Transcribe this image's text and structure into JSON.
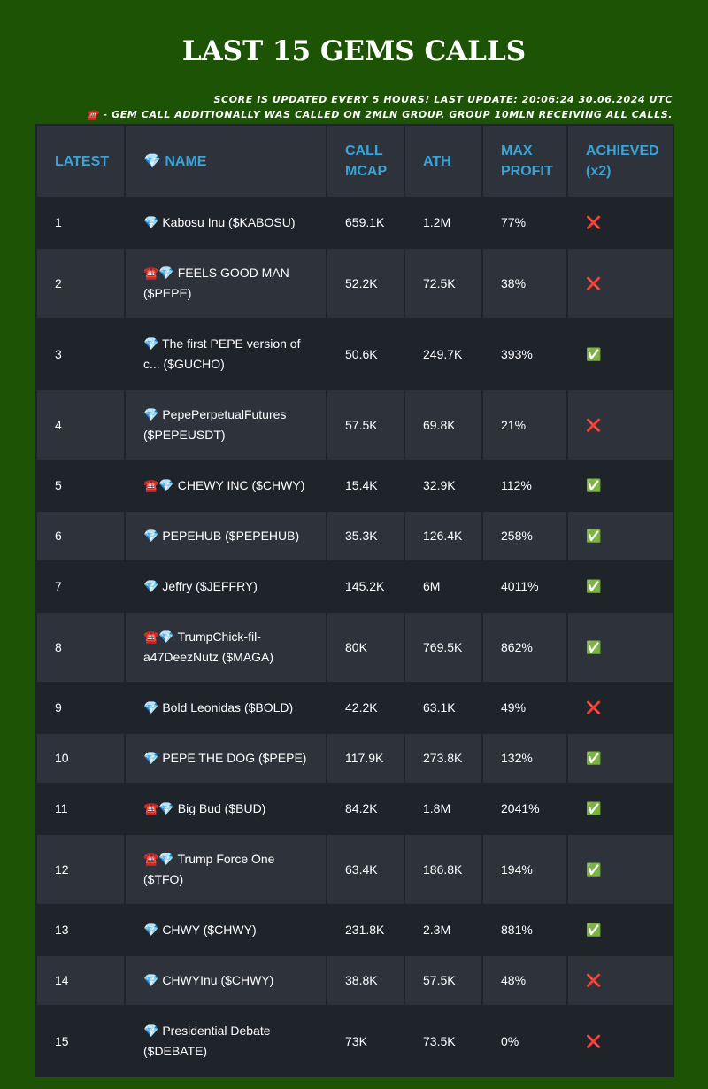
{
  "header": {
    "title": "LAST 15 GEMS CALLS",
    "subtitle": [
      "SCORE IS UPDATED EVERY 5 HOURS! LAST UPDATE: 20:06:24 30.06.2024 UTC",
      "☎️ - GEM CALL ADDITIONALLY WAS CALLED ON 2MLN GROUP. GROUP 10MLN RECEIVING ALL CALLS."
    ]
  },
  "table": {
    "columns": [
      "LATEST",
      "💎 NAME",
      "CALL MCAP",
      "ATH",
      "MAX PROFIT",
      "ACHIEVED (x2)"
    ],
    "rows": [
      [
        "1",
        "💎 Kabosu Inu ($KABOSU)",
        "659.1K",
        "1.2M",
        "77%",
        "❌"
      ],
      [
        "2",
        "☎️💎 FEELS GOOD MAN ($PEPE)",
        "52.2K",
        "72.5K",
        "38%",
        "❌"
      ],
      [
        "3",
        "💎 The first PEPE version of c... ($GUCHO)",
        "50.6K",
        "249.7K",
        "393%",
        "✅"
      ],
      [
        "4",
        "💎 PepePerpetualFutures ($PEPEUSDT)",
        "57.5K",
        "69.8K",
        "21%",
        "❌"
      ],
      [
        "5",
        "☎️💎 CHEWY INC ($CHWY)",
        "15.4K",
        "32.9K",
        "112%",
        "✅"
      ],
      [
        "6",
        "💎 PEPEHUB ($PEPEHUB)",
        "35.3K",
        "126.4K",
        "258%",
        "✅"
      ],
      [
        "7",
        "💎 Jeffry ($JEFFRY)",
        "145.2K",
        "6M",
        "4011%",
        "✅"
      ],
      [
        "8",
        "☎️💎 TrumpChick-fil-a47DeezNutz ($MAGA)",
        "80K",
        "769.5K",
        "862%",
        "✅"
      ],
      [
        "9",
        "💎 Bold Leonidas ($BOLD)",
        "42.2K",
        "63.1K",
        "49%",
        "❌"
      ],
      [
        "10",
        "💎 PEPE THE DOG ($PEPE)",
        "117.9K",
        "273.8K",
        "132%",
        "✅"
      ],
      [
        "11",
        "☎️💎 Big Bud ($BUD)",
        "84.2K",
        "1.8M",
        "2041%",
        "✅"
      ],
      [
        "12",
        "☎️💎 Trump Force One ($TFO)",
        "63.4K",
        "186.8K",
        "194%",
        "✅"
      ],
      [
        "13",
        "💎 CHWY ($CHWY)",
        "231.8K",
        "2.3M",
        "881%",
        "✅"
      ],
      [
        "14",
        "💎 CHWYInu ($CHWY)",
        "38.8K",
        "57.5K",
        "48%",
        "❌"
      ],
      [
        "15",
        "💎 Presidential Debate ($DEBATE)",
        "73K",
        "73.5K",
        "0%",
        "❌"
      ]
    ]
  }
}
